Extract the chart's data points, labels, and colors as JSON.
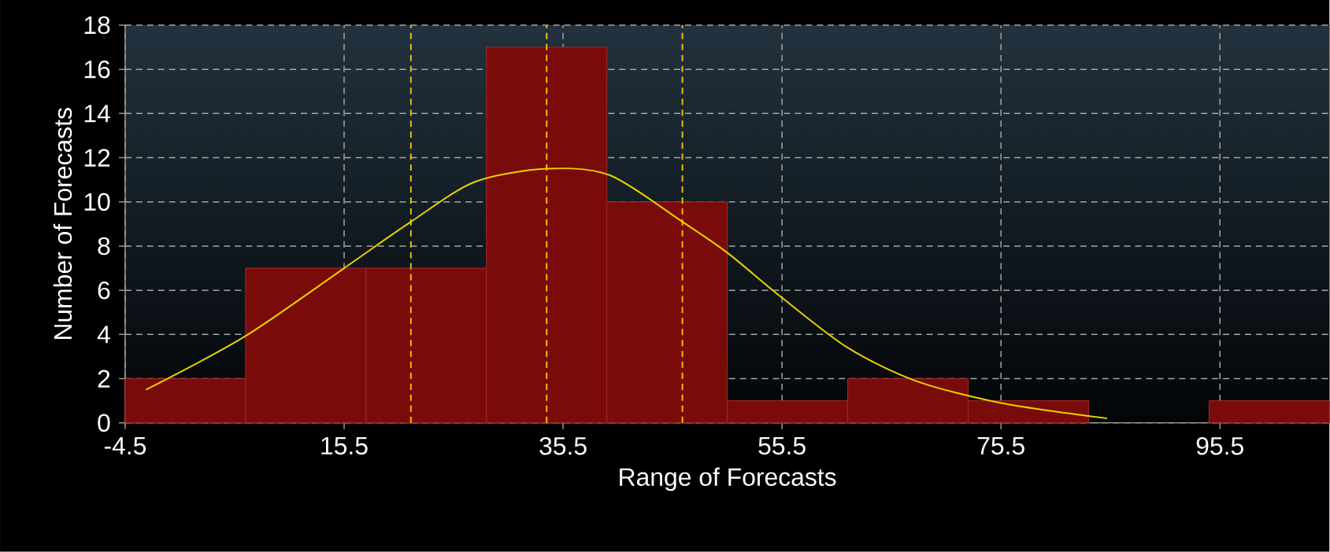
{
  "chart_data": {
    "type": "histogram",
    "xlabel": "Range of Forecasts",
    "ylabel": "Number of Forecasts",
    "bins": [
      -4.5,
      6.5,
      17.5,
      28.5,
      39.5,
      50.5,
      61.5,
      72.5,
      83.5,
      94.5,
      105.5
    ],
    "values": [
      2,
      7,
      7,
      17,
      10,
      1,
      2,
      1,
      0,
      1
    ],
    "color": "#7a0b0b",
    "series": [
      {
        "type": "line",
        "color": "#e6d200",
        "x": [
          -2.6,
          6.4,
          15.5,
          21.6,
          27.4,
          34,
          39.8,
          46.4,
          50.5,
          55.4,
          61.5,
          67.7,
          75.5,
          85.2
        ],
        "values": [
          1.5,
          3.9,
          7.0,
          9.1,
          10.9,
          11.5,
          11.2,
          9.1,
          7.7,
          5.7,
          3.4,
          1.9,
          0.9,
          0.2
        ]
      }
    ],
    "ref_lines": [
      {
        "axis": "x",
        "value": 21.6,
        "color": "#e6c200",
        "line_style": "dashed"
      },
      {
        "axis": "x",
        "value": 34,
        "color": "#e6c200",
        "line_style": "dashed"
      },
      {
        "axis": "x",
        "value": 46.4,
        "color": "#e6c200",
        "line_style": "dashed"
      }
    ],
    "xlim": [
      -4.5,
      105.5
    ],
    "ylim": [
      0,
      18
    ],
    "xticks": [
      -4.5,
      15.5,
      35.5,
      55.5,
      75.5,
      95.5
    ],
    "yticks": [
      0,
      2,
      4,
      6,
      8,
      10,
      12,
      14,
      16,
      18
    ],
    "grid": true
  }
}
